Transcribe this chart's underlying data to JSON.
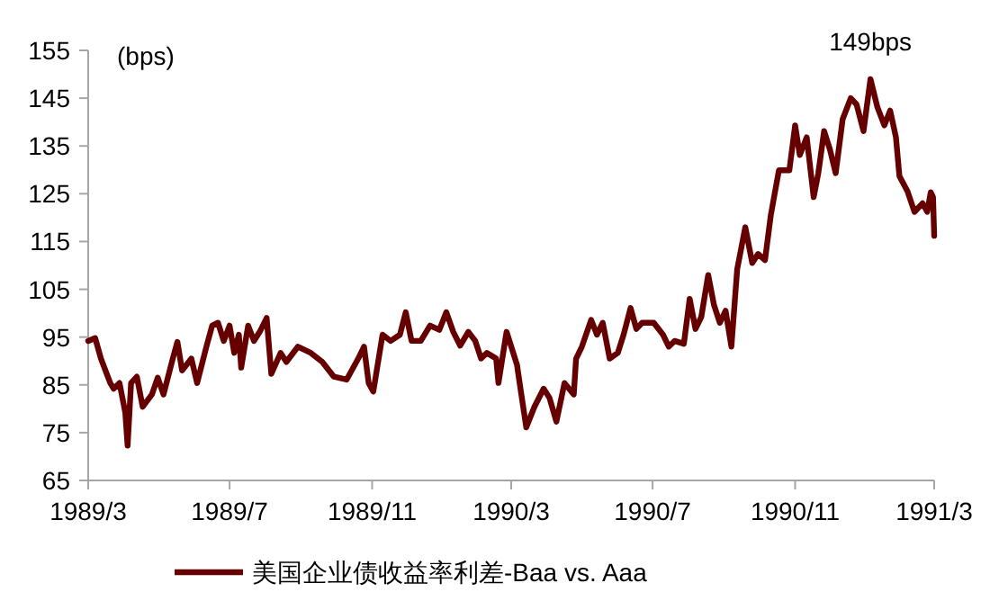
{
  "chart_data": {
    "type": "line",
    "ylabel": "(bps)",
    "annotations": [
      {
        "text": "149bps",
        "x": "1991-01-05",
        "y": 149
      }
    ],
    "x": [
      "1989-03-01",
      "1989-03-07",
      "1989-03-12",
      "1989-03-20",
      "1989-03-23",
      "1989-03-28",
      "1989-04-02",
      "1989-04-04",
      "1989-04-07",
      "1989-04-12",
      "1989-04-17",
      "1989-04-25",
      "1989-04-30",
      "1989-05-05",
      "1989-05-13",
      "1989-05-17",
      "1989-05-21",
      "1989-05-29",
      "1989-06-03",
      "1989-06-11",
      "1989-06-16",
      "1989-06-21",
      "1989-06-26",
      "1989-07-01",
      "1989-07-05",
      "1989-07-09",
      "1989-07-11",
      "1989-07-17",
      "1989-07-22",
      "1989-07-27",
      "1989-08-02",
      "1989-08-06",
      "1989-08-14",
      "1989-08-19",
      "1989-08-29",
      "1989-09-09",
      "1989-09-19",
      "1989-09-29",
      "1989-10-10",
      "1989-10-20",
      "1989-10-25",
      "1989-10-29",
      "1989-11-02",
      "1989-11-10",
      "1989-11-17",
      "1989-11-25",
      "1989-11-30",
      "1989-12-05",
      "1989-12-13",
      "1989-12-21",
      "1989-12-29",
      "1990-01-04",
      "1990-01-10",
      "1990-01-16",
      "1990-01-23",
      "1990-01-29",
      "1990-02-03",
      "1990-02-08",
      "1990-02-16",
      "1990-02-18",
      "1990-02-25",
      "1990-03-06",
      "1990-03-09",
      "1990-03-14",
      "1990-03-21",
      "1990-03-29",
      "1990-04-03",
      "1990-04-09",
      "1990-04-16",
      "1990-04-24",
      "1990-04-26",
      "1990-05-01",
      "1990-05-09",
      "1990-05-14",
      "1990-05-19",
      "1990-05-25",
      "1990-06-01",
      "1990-06-06",
      "1990-06-12",
      "1990-06-17",
      "1990-06-22",
      "1990-07-02",
      "1990-07-10",
      "1990-07-15",
      "1990-07-20",
      "1990-07-28",
      "1990-08-02",
      "1990-08-07",
      "1990-08-12",
      "1990-08-18",
      "1990-08-23",
      "1990-08-28",
      "1990-09-02",
      "1990-09-07",
      "1990-09-12",
      "1990-09-19",
      "1990-09-25",
      "1990-09-30",
      "1990-10-06",
      "1990-10-11",
      "1990-10-18",
      "1990-10-27",
      "1990-11-01",
      "1990-11-05",
      "1990-11-11",
      "1990-11-17",
      "1990-11-21",
      "1990-11-26",
      "1990-12-01",
      "1990-12-06",
      "1990-12-12",
      "1990-12-19",
      "1990-12-24",
      "1990-12-30",
      "1991-01-05",
      "1991-01-11",
      "1991-01-17",
      "1991-01-22",
      "1991-01-27",
      "1991-01-30",
      "1991-02-06",
      "1991-02-12",
      "1991-02-19",
      "1991-02-23",
      "1991-02-26",
      "1991-02-28",
      "1991-03-01"
    ],
    "series": [
      {
        "name": "美国企业债收益率利差-Baa vs. Aaa",
        "color": "#660000",
        "values": [
          94.2,
          94.8,
          90.5,
          85.4,
          84.2,
          85.4,
          79.2,
          72.3,
          85.4,
          86.7,
          80.4,
          83,
          86.5,
          83,
          90.5,
          94,
          88,
          90.5,
          85.4,
          93,
          97.4,
          98,
          94.2,
          97.4,
          91.7,
          95.5,
          88.6,
          97.4,
          94.2,
          96.1,
          99,
          87.3,
          91.7,
          89.8,
          93,
          91.7,
          89.8,
          86.7,
          86.1,
          90.5,
          93,
          85.4,
          83.6,
          95.5,
          94.2,
          95.5,
          100.2,
          94.2,
          94.2,
          97.4,
          96.5,
          100.2,
          96.1,
          93.2,
          96.1,
          94.2,
          90.5,
          91.7,
          90.5,
          85.4,
          96.1,
          89.2,
          84.2,
          76.1,
          80.4,
          84.2,
          82.3,
          77.3,
          85.4,
          83,
          90.5,
          93,
          98.6,
          95.5,
          98,
          90.5,
          91.7,
          95.5,
          101.1,
          96.7,
          98,
          98,
          95.5,
          93,
          94.2,
          93.6,
          103,
          96.7,
          99.2,
          108,
          101.7,
          98,
          100.5,
          93,
          109.2,
          118,
          110.5,
          112.4,
          111.1,
          120.5,
          129.9,
          129.9,
          139.3,
          133.1,
          136.8,
          124.3,
          129.3,
          138.1,
          134.3,
          129.3,
          140.6,
          145,
          143.7,
          138.1,
          149,
          143.1,
          139.3,
          142.4,
          136.8,
          128.7,
          125.5,
          121.2,
          123,
          121.2,
          125.3,
          124.3,
          116.2
        ]
      }
    ],
    "xlim": [
      "1989-03-01",
      "1991-03-01"
    ],
    "xticks": [
      {
        "value": "1989-03-01",
        "label": "1989/3"
      },
      {
        "value": "1989-07-01",
        "label": "1989/7"
      },
      {
        "value": "1989-11-01",
        "label": "1989/11"
      },
      {
        "value": "1990-03-01",
        "label": "1990/3"
      },
      {
        "value": "1990-07-01",
        "label": "1990/7"
      },
      {
        "value": "1990-11-01",
        "label": "1990/11"
      },
      {
        "value": "1991-03-01",
        "label": "1991/3"
      }
    ],
    "ylim": [
      65,
      155
    ],
    "yticks": [
      65,
      75,
      85,
      95,
      105,
      115,
      125,
      135,
      145,
      155
    ],
    "grid": false,
    "legend": "bottom",
    "marker": "none",
    "line_style": "solid"
  }
}
